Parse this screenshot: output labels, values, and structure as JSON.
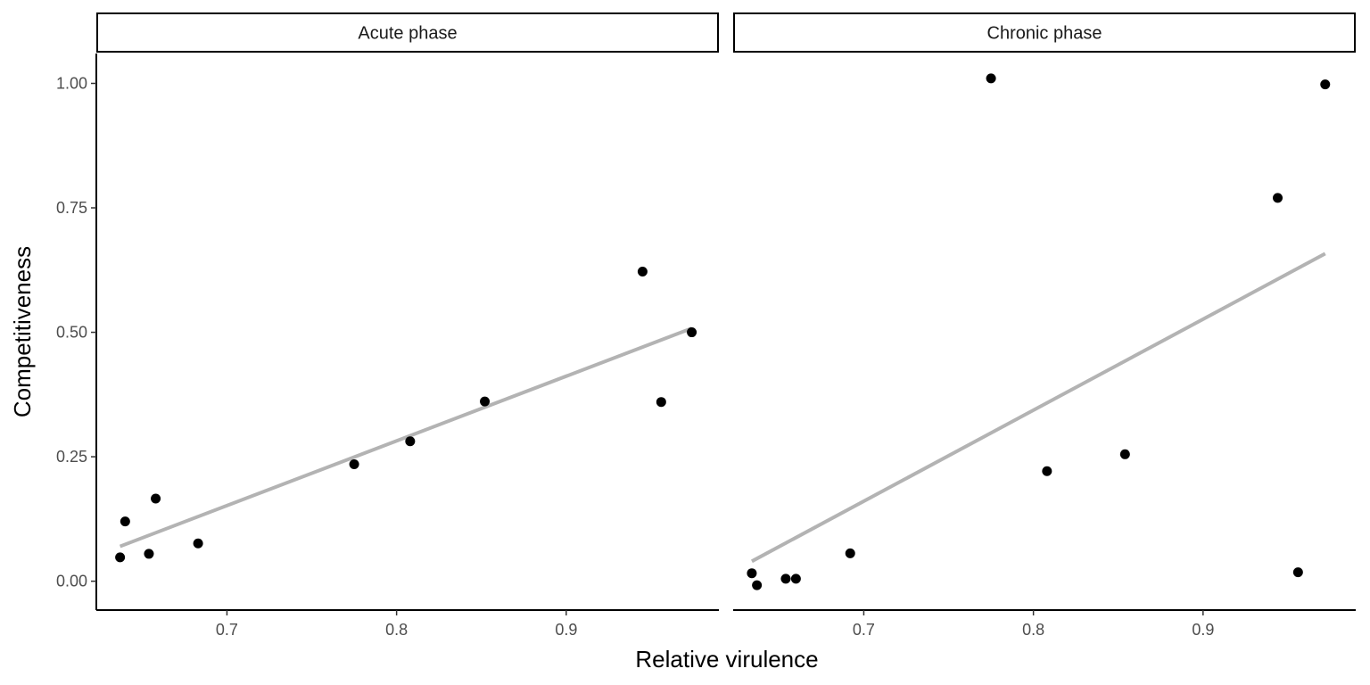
{
  "chart_data": {
    "type": "scatter",
    "xlabel": "Relative virulence",
    "ylabel": "Competitiveness",
    "xlim": [
      0.623,
      0.99
    ],
    "ylim": [
      -0.058,
      1.06
    ],
    "x_ticks": [
      0.7,
      0.8,
      0.9
    ],
    "x_tick_labels": [
      "0.7",
      "0.8",
      "0.9"
    ],
    "y_ticks": [
      0,
      0.25,
      0.5,
      0.75,
      1.0
    ],
    "y_tick_labels": [
      "0.00",
      "0.25",
      "0.50",
      "0.75",
      "1.00"
    ],
    "grid": false,
    "colors": {
      "points": "#000000",
      "fit_line": "#b3b3b3"
    },
    "panels": [
      {
        "label": "Acute phase",
        "points": [
          {
            "x": 0.637,
            "y": 0.048
          },
          {
            "x": 0.64,
            "y": 0.12
          },
          {
            "x": 0.654,
            "y": 0.055
          },
          {
            "x": 0.658,
            "y": 0.166
          },
          {
            "x": 0.683,
            "y": 0.076
          },
          {
            "x": 0.775,
            "y": 0.235
          },
          {
            "x": 0.808,
            "y": 0.281
          },
          {
            "x": 0.852,
            "y": 0.361
          },
          {
            "x": 0.945,
            "y": 0.622
          },
          {
            "x": 0.956,
            "y": 0.36
          },
          {
            "x": 0.974,
            "y": 0.5
          }
        ],
        "fit": {
          "x": [
            0.637,
            0.974
          ],
          "y": [
            0.07,
            0.508
          ]
        }
      },
      {
        "label": "Chronic phase",
        "points": [
          {
            "x": 0.634,
            "y": 0.016
          },
          {
            "x": 0.637,
            "y": -0.008
          },
          {
            "x": 0.654,
            "y": 0.005
          },
          {
            "x": 0.66,
            "y": 0.005
          },
          {
            "x": 0.692,
            "y": 0.056
          },
          {
            "x": 0.775,
            "y": 1.01
          },
          {
            "x": 0.808,
            "y": 0.221
          },
          {
            "x": 0.854,
            "y": 0.255
          },
          {
            "x": 0.944,
            "y": 0.77
          },
          {
            "x": 0.956,
            "y": 0.018
          },
          {
            "x": 0.972,
            "y": 0.998
          }
        ],
        "fit": {
          "x": [
            0.634,
            0.972
          ],
          "y": [
            0.04,
            0.658
          ]
        }
      }
    ]
  }
}
